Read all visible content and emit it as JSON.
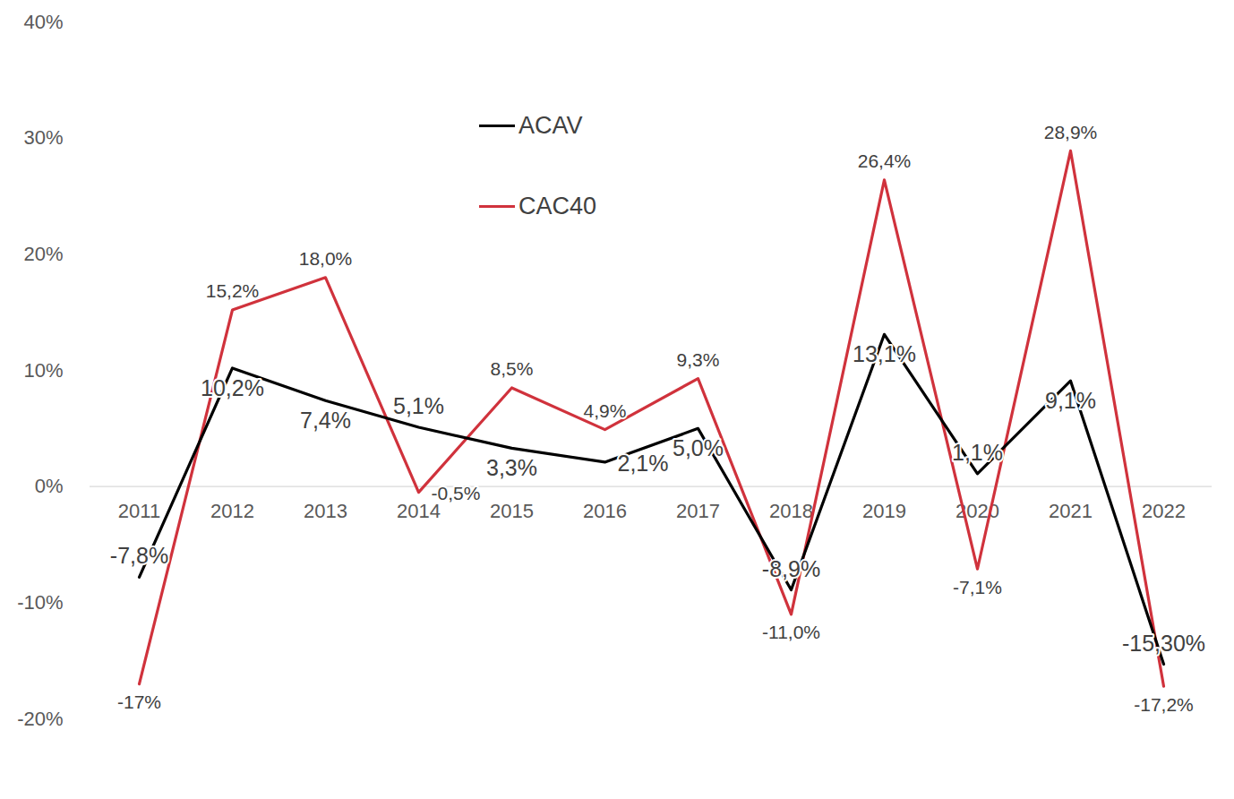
{
  "chart_data": {
    "type": "line",
    "categories": [
      "2011",
      "2012",
      "2013",
      "2014",
      "2015",
      "2016",
      "2017",
      "2018",
      "2019",
      "2020",
      "2021",
      "2022"
    ],
    "series": [
      {
        "name": "ACAV",
        "color": "#000000",
        "values": [
          -7.8,
          10.2,
          7.4,
          5.1,
          3.3,
          2.1,
          5.0,
          -8.9,
          13.1,
          1.1,
          9.1,
          -15.3
        ],
        "value_labels": [
          "-7,8%",
          "10,2%",
          "7,4%",
          "5,1%",
          "3,3%",
          "2,1%",
          "5,0%",
          "-8,9%",
          "13,1%",
          "1,1%",
          "9,1%",
          "-15,30%"
        ]
      },
      {
        "name": "CAC40",
        "color": "#d0323c",
        "values": [
          -17,
          15.2,
          18.0,
          -0.5,
          8.5,
          4.9,
          9.3,
          -11.0,
          26.4,
          -7.1,
          28.9,
          -17.2
        ],
        "value_labels": [
          "-17%",
          "15,2%",
          "18,0%",
          "-0,5%",
          "8,5%",
          "4,9%",
          "9,3%",
          "-11,0%",
          "26,4%",
          "-7,1%",
          "28,9%",
          "-17,2%"
        ]
      }
    ],
    "ylim": [
      -20,
      40
    ],
    "yticks": [
      {
        "value": -20,
        "label": "-20%"
      },
      {
        "value": -10,
        "label": "-10%"
      },
      {
        "value": 0,
        "label": "0%"
      },
      {
        "value": 10,
        "label": "10%"
      },
      {
        "value": 20,
        "label": "20%"
      },
      {
        "value": 30,
        "label": "30%"
      },
      {
        "value": 40,
        "label": "40%"
      }
    ],
    "grid": false,
    "legend": "top",
    "data_labels": true
  }
}
